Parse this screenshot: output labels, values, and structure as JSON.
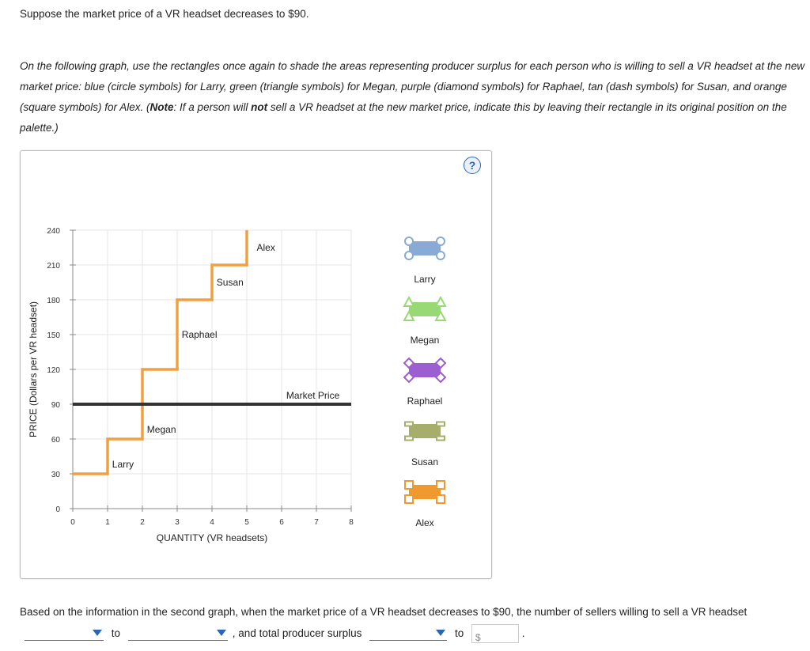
{
  "question": "Suppose the market price of a VR headset decreases to $90.",
  "instructions": {
    "part1": "On the following graph, use the rectangles once again to shade the areas representing producer surplus for each person who is willing to sell a VR headset at the new market price: blue (circle symbols) for Larry, green (triangle symbols) for Megan, purple (diamond symbols) for Raphael, tan (dash symbols) for Susan, and orange (square symbols) for Alex. (",
    "note_label": "Note",
    "part2": ": If a person will ",
    "not_word": "not",
    "part3": " sell a VR headset at the new market price, indicate this by leaving their rectangle in its original position on the palette.)"
  },
  "help_icon": "question-mark-icon",
  "help_text": "?",
  "chart_data": {
    "type": "line",
    "xlabel": "QUANTITY (VR headsets)",
    "ylabel": "PRICE (Dollars per VR headset)",
    "xlim": [
      0,
      8
    ],
    "ylim": [
      0,
      240
    ],
    "xticks": [
      "0",
      "1",
      "2",
      "3",
      "4",
      "5",
      "6",
      "7",
      "8"
    ],
    "yticks": [
      "0",
      "30",
      "60",
      "90",
      "120",
      "150",
      "180",
      "210",
      "240"
    ],
    "grid": true,
    "supply_steps": [
      {
        "seller": "Larry",
        "quantity_from": 0,
        "quantity_to": 1,
        "price": 30
      },
      {
        "seller": "Megan",
        "quantity_from": 1,
        "quantity_to": 2,
        "price": 60
      },
      {
        "seller": "Raphael",
        "quantity_from": 2,
        "quantity_to": 3,
        "price": 120
      },
      {
        "seller": "Susan",
        "quantity_from": 3,
        "quantity_to": 4,
        "price": 180
      },
      {
        "seller": "Alex",
        "quantity_from": 4,
        "quantity_to": 5,
        "price": 210
      }
    ],
    "supply_top_price": 240,
    "market_price": 90,
    "market_price_label": "Market Price",
    "supply_color": "#f0a040",
    "market_price_color": "#333333"
  },
  "palette": [
    {
      "name": "Larry",
      "symbol": "circle",
      "color": "#8aaad6"
    },
    {
      "name": "Megan",
      "symbol": "triangle",
      "color": "#99d975"
    },
    {
      "name": "Raphael",
      "symbol": "diamond",
      "color": "#9b5fd1"
    },
    {
      "name": "Susan",
      "symbol": "dash",
      "color": "#a7ad6b"
    },
    {
      "name": "Alex",
      "symbol": "square",
      "color": "#f0992f"
    }
  ],
  "sentence": {
    "part1": "Based on the information in the second graph, when the market price of a VR headset decreases to $90, the number of sellers willing to sell a VR headset",
    "to1": "to",
    "part2": ", and total producer surplus",
    "to2": "to",
    "currency": "$",
    "end": "."
  }
}
